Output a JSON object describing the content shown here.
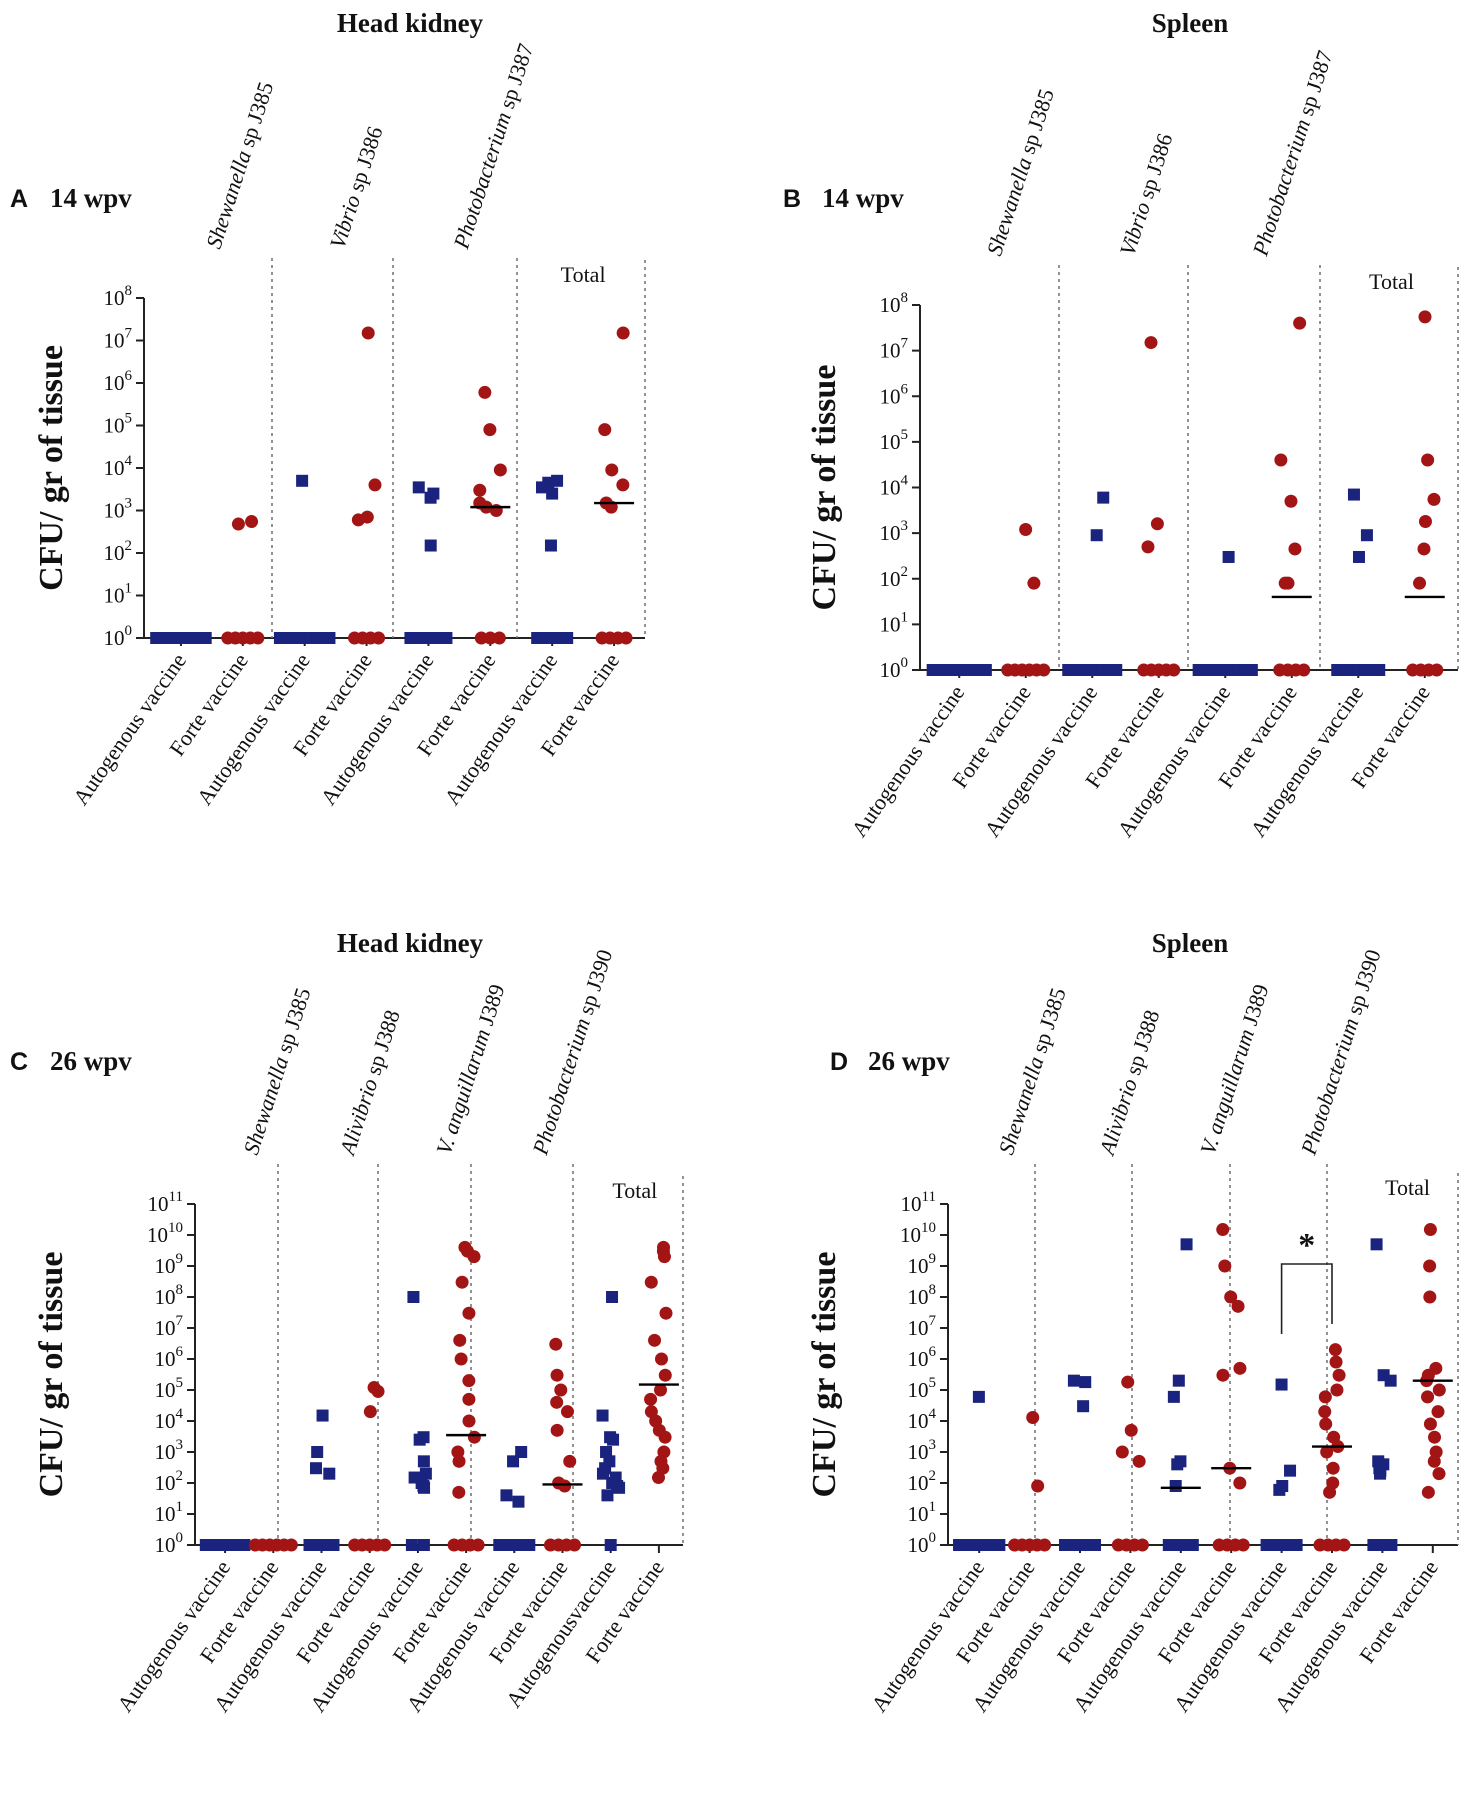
{
  "colors": {
    "autogenous": "#1a237e",
    "forte": "#a31515",
    "axis": "#222222",
    "divider": "#777777"
  },
  "legend_semantics": {
    "square": "Autogenous vaccine",
    "circle": "Forte vaccine"
  },
  "chart_data": [
    {
      "type": "scatter",
      "panel": "A",
      "timepoint": "14 wpv",
      "title": "Head kidney",
      "ylabel": "CFU/ gr of tissue",
      "yscale": "log10",
      "ylim_exp": [
        0,
        8
      ],
      "categories": [
        "Autogenous vaccine",
        "Forte vaccine",
        "Autogenous vaccine",
        "Forte vaccine",
        "Autogenous vaccine",
        "Forte vaccine",
        "Autogenous vaccine",
        "Forte vaccine"
      ],
      "groups": [
        {
          "label_italic": "Shewanella",
          "label_rest": " sp J385",
          "total": false
        },
        {
          "label_italic": "Vibrio",
          "label_rest": " sp J386",
          "total": false
        },
        {
          "label_italic": "Photobacterium",
          "label_rest": " sp J387",
          "total": false
        },
        {
          "label_italic": "",
          "label_rest": "Total",
          "total": true
        }
      ],
      "series": [
        {
          "name": "Autogenous vaccine",
          "marker": "square",
          "values_by_category": [
            [
              1,
              1,
              1,
              1,
              1,
              1,
              1,
              1,
              1,
              1
            ],
            [],
            [
              5000,
              1,
              1,
              1,
              1,
              1,
              1,
              1,
              1,
              1
            ],
            [],
            [
              3500,
              2500,
              2000,
              150,
              1,
              1,
              1,
              1,
              1,
              1
            ],
            [],
            [
              5000,
              4500,
              3500,
              2500,
              150,
              1,
              1,
              1,
              1,
              1
            ],
            []
          ]
        },
        {
          "name": "Forte vaccine",
          "marker": "circle",
          "values_by_category": [
            [],
            [
              550,
              480,
              1,
              1,
              1,
              1,
              1
            ],
            [],
            [
              15000000,
              4000,
              700,
              600,
              1,
              1,
              1,
              1
            ],
            [],
            [
              600000,
              80000,
              9000,
              3000,
              1500,
              1200,
              1000,
              1,
              1,
              1
            ],
            [],
            [
              15000000,
              80000,
              9000,
              4000,
              1500,
              1200,
              1,
              1,
              1,
              1
            ]
          ]
        }
      ],
      "medians": [
        null,
        null,
        null,
        null,
        null,
        1200,
        null,
        1500
      ],
      "significance": []
    },
    {
      "type": "scatter",
      "panel": "B",
      "timepoint": "14 wpv",
      "title": "Spleen",
      "ylabel": "CFU/ gr of tissue",
      "yscale": "log10",
      "ylim_exp": [
        0,
        8
      ],
      "categories": [
        "Autogenous vaccine",
        "Forte vaccine",
        "Autogenous vaccine",
        "Forte vaccine",
        "Autogenous vaccine",
        "Forte vaccine",
        "Autogenous vaccine",
        "Forte vaccine"
      ],
      "groups": [
        {
          "label_italic": "Shewanella",
          "label_rest": " sp J385",
          "total": false
        },
        {
          "label_italic": "Vibrio",
          "label_rest": " sp J386",
          "total": false
        },
        {
          "label_italic": "Photobacterium",
          "label_rest": " sp J387",
          "total": false
        },
        {
          "label_italic": "",
          "label_rest": "Total",
          "total": true
        }
      ],
      "series": [
        {
          "name": "Autogenous vaccine",
          "marker": "square",
          "values_by_category": [
            [
              1,
              1,
              1,
              1,
              1,
              1,
              1,
              1,
              1,
              1
            ],
            [],
            [
              6000,
              900,
              1,
              1,
              1,
              1,
              1,
              1,
              1,
              1
            ],
            [],
            [
              300,
              1,
              1,
              1,
              1,
              1,
              1,
              1,
              1,
              1
            ],
            [],
            [
              7000,
              900,
              300,
              1,
              1,
              1,
              1,
              1,
              1,
              1
            ],
            []
          ]
        },
        {
          "name": "Forte vaccine",
          "marker": "circle",
          "values_by_category": [
            [],
            [
              1200,
              80,
              1,
              1,
              1,
              1,
              1,
              1
            ],
            [],
            [
              15000000,
              1600,
              500,
              1,
              1,
              1,
              1,
              1
            ],
            [],
            [
              40000000,
              40000,
              5000,
              450,
              80,
              80,
              1,
              1,
              1,
              1
            ],
            [],
            [
              55000000,
              40000,
              5500,
              1800,
              450,
              80,
              1,
              1,
              1,
              1
            ]
          ]
        }
      ],
      "medians": [
        null,
        null,
        null,
        null,
        null,
        40,
        null,
        40
      ],
      "significance": []
    },
    {
      "type": "scatter",
      "panel": "C",
      "timepoint": "26 wpv",
      "title": "Head kidney",
      "ylabel": "CFU/ gr of tissue",
      "yscale": "log10",
      "ylim_exp": [
        0,
        11
      ],
      "categories": [
        "Autogenous vaccine",
        "Forte vaccine",
        "Autogenous vaccine",
        "Forte vaccine",
        "Autogenous vaccine",
        "Forte vaccine",
        "Autogenous vaccine",
        "Forte vaccine",
        "Autogenousvaccine",
        "Forte vaccine"
      ],
      "groups": [
        {
          "label_italic": "Shewanella",
          "label_rest": " sp J385",
          "total": false
        },
        {
          "label_italic": "Alivibrio",
          "label_rest": " sp J388",
          "total": false
        },
        {
          "label_italic": "V. anguillarum",
          "label_rest": " J389",
          "total": false
        },
        {
          "label_italic": "Photobacterium",
          "label_rest": " sp J390",
          "total": false
        },
        {
          "label_italic": "",
          "label_rest": "Total",
          "total": true
        }
      ],
      "series": [
        {
          "name": "Autogenous vaccine",
          "marker": "square",
          "values_by_category": [
            [
              1,
              1,
              1,
              1,
              1,
              1,
              1,
              1
            ],
            [],
            [
              15000,
              1000,
              300,
              200,
              1,
              1,
              1,
              1
            ],
            [],
            [
              100000000,
              3000,
              2500,
              500,
              200,
              150,
              100,
              80,
              70,
              1,
              1
            ],
            [],
            [
              1000,
              500,
              40,
              25,
              1,
              1,
              1,
              1,
              1
            ],
            [],
            [
              100000000,
              15000,
              3000,
              2500,
              1000,
              500,
              300,
              200,
              150,
              100,
              80,
              70,
              40,
              1
            ]
          ]
        },
        {
          "name": "Forte vaccine",
          "marker": "circle",
          "values_by_category": [
            [],
            [
              1,
              1,
              1,
              1,
              1,
              1
            ],
            [],
            [
              120000,
              90000,
              20000,
              1,
              1,
              1,
              1,
              1
            ],
            [],
            [
              4000000000,
              3000000000,
              2000000000,
              300000000,
              30000000,
              4000000,
              1000000,
              200000,
              50000,
              10000,
              3000,
              1000,
              500,
              50,
              1,
              1,
              1,
              1
            ],
            [],
            [
              3000000,
              300000,
              100000,
              40000,
              20000,
              5000,
              500,
              100,
              80,
              1,
              1,
              1,
              1
            ],
            [],
            [
              4000000000,
              3000000000,
              2000000000,
              300000000,
              30000000,
              4000000,
              1000000,
              300000,
              100000,
              50000,
              20000,
              10000,
              5000,
              3000,
              1000,
              500,
              300,
              150
            ]
          ]
        }
      ],
      "medians": [
        null,
        null,
        null,
        null,
        null,
        3500,
        null,
        90,
        null,
        150000
      ],
      "significance": []
    },
    {
      "type": "scatter",
      "panel": "D",
      "timepoint": "26 wpv",
      "title": "Spleen",
      "ylabel": "CFU/ gr of tissue",
      "yscale": "log10",
      "ylim_exp": [
        0,
        11
      ],
      "categories": [
        "Autogenous vaccine",
        "Forte vaccine",
        "Autogenous vaccine",
        "Forte vaccine",
        "Autogenous vaccine",
        "Forte vaccine",
        "Autogenous vaccine",
        "Forte vaccine",
        "Autogenous vaccine",
        "Forte vaccine"
      ],
      "groups": [
        {
          "label_italic": "Shewanella",
          "label_rest": " sp J385",
          "total": false
        },
        {
          "label_italic": "Alivibrio",
          "label_rest": " sp J388",
          "total": false
        },
        {
          "label_italic": "V. anguillarum",
          "label_rest": " J389",
          "total": false
        },
        {
          "label_italic": "Photobacterium",
          "label_rest": " sp J390",
          "total": false
        },
        {
          "label_italic": "",
          "label_rest": "Total",
          "total": true
        }
      ],
      "series": [
        {
          "name": "Autogenous vaccine",
          "marker": "square",
          "values_by_category": [
            [
              60000,
              1,
              1,
              1,
              1,
              1,
              1,
              1
            ],
            [],
            [
              200000,
              180000,
              30000,
              1,
              1,
              1,
              1,
              1
            ],
            [],
            [
              5000000000,
              200000,
              60000,
              500,
              400,
              80,
              1,
              1,
              1,
              1
            ],
            [],
            [
              150000,
              250,
              80,
              60,
              1,
              1,
              1,
              1,
              1
            ],
            [],
            [
              5000000000,
              300000,
              200000,
              500,
              400,
              300,
              250,
              200,
              1,
              1,
              1
            ]
          ]
        },
        {
          "name": "Forte vaccine",
          "marker": "circle",
          "values_by_category": [
            [],
            [
              13000,
              80,
              1,
              1,
              1,
              1,
              1
            ],
            [],
            [
              180000,
              5000,
              1000,
              500,
              1,
              1,
              1,
              1
            ],
            [],
            [
              15000000000,
              1000000000,
              100000000,
              50000000,
              500000,
              300000,
              300,
              100,
              1,
              1,
              1,
              1
            ],
            [],
            [
              2000000,
              800000,
              300000,
              100000,
              60000,
              20000,
              8000,
              3000,
              1500,
              1000,
              300,
              100,
              50,
              1,
              1,
              1,
              1
            ],
            [],
            [
              15000000000,
              1000000000,
              100000000,
              500000,
              300000,
              200000,
              100000,
              60000,
              20000,
              8000,
              3000,
              1000,
              500,
              200,
              50
            ]
          ]
        }
      ],
      "medians": [
        null,
        null,
        null,
        null,
        70,
        300,
        null,
        1500,
        null,
        200000
      ],
      "significance": [
        {
          "between": [
            6,
            7
          ],
          "label": "*"
        }
      ]
    }
  ]
}
